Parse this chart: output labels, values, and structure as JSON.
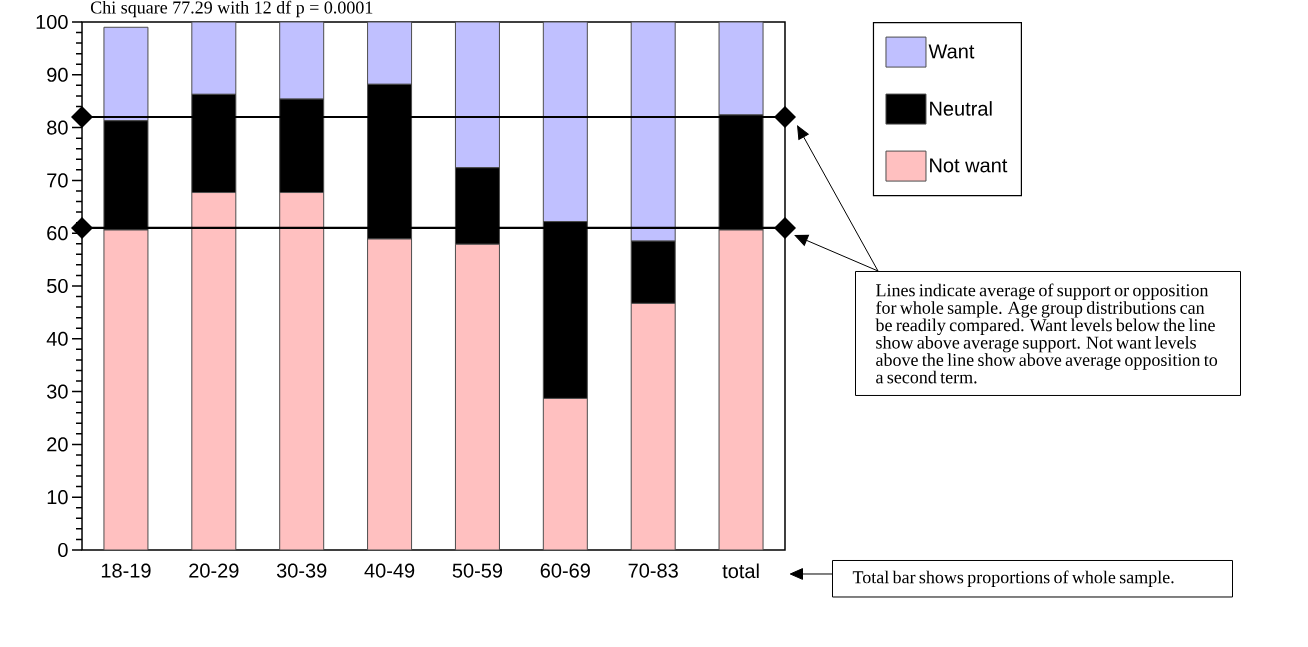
{
  "chart_data": {
    "type": "bar",
    "stacked": true,
    "categories": [
      "18-19",
      "20-29",
      "30-39",
      "40-49",
      "50-59",
      "60-69",
      "70-83",
      "total"
    ],
    "series": [
      {
        "name": "Not want",
        "color": "#ffc0c0",
        "values": [
          60.6,
          67.7,
          67.7,
          58.9,
          57.9,
          28.7,
          46.7,
          60.6
        ]
      },
      {
        "name": "Neutral",
        "color": "#000000",
        "values": [
          20.7,
          18.6,
          17.7,
          29.3,
          14.5,
          33.5,
          11.8,
          21.8
        ]
      },
      {
        "name": "Want",
        "color": "#c0c0ff",
        "values": [
          17.7,
          13.7,
          14.6,
          11.8,
          27.6,
          37.8,
          41.5,
          17.6
        ]
      }
    ],
    "ylim": [
      0,
      100
    ],
    "yticks": [
      0,
      10,
      20,
      30,
      40,
      50,
      60,
      70,
      80,
      90,
      100
    ],
    "legend": "right",
    "ref_lines": [
      {
        "axis": "y",
        "value": 61
      },
      {
        "axis": "y",
        "value": 82
      }
    ],
    "annotations": [
      "Chi square 77.29 with 12 df p = 0.0001",
      "Lines indicate average of support or opposition for whole sample.  Age group distributions can be readily compared.  Want levels below the line show above average support.  Not want levels above the line show above average opposition to a second term.",
      "Total bar shows proportions of whole sample."
    ]
  }
}
